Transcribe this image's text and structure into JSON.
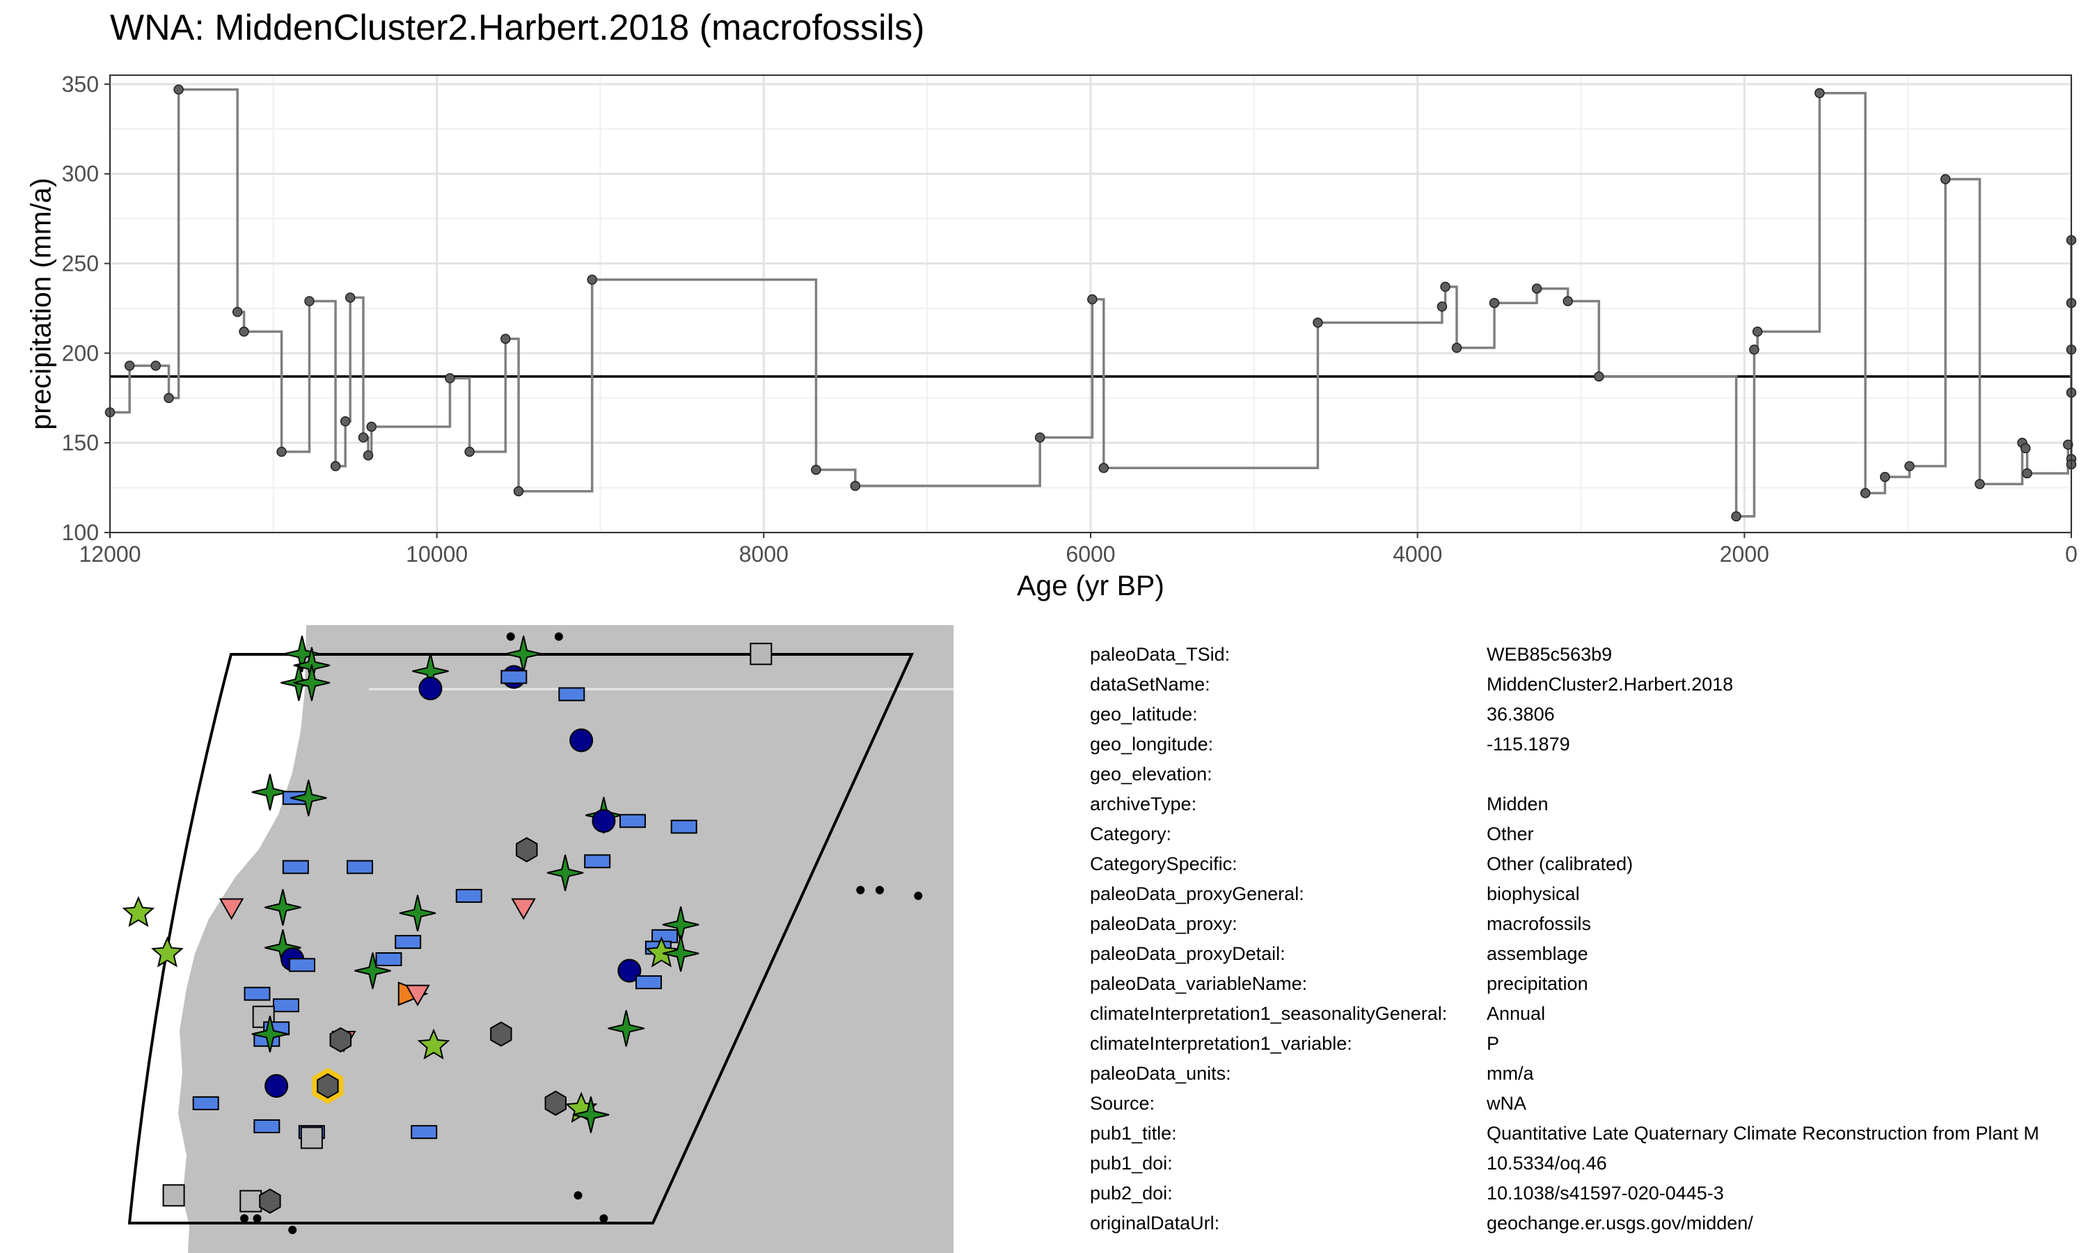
{
  "title": "WNA: MiddenCluster2.Harbert.2018 (macrofossils)",
  "chart_data": {
    "type": "line",
    "step": true,
    "xlabel": "Age (yr BP)",
    "ylabel": "precipitation (mm/a)",
    "xlim": [
      12000,
      0
    ],
    "ylim": [
      100,
      355
    ],
    "x_ticks": [
      12000,
      10000,
      8000,
      6000,
      4000,
      2000,
      0
    ],
    "y_ticks": [
      100,
      150,
      200,
      250,
      300,
      350
    ],
    "grid": true,
    "mean_line": 187,
    "series": [
      {
        "x": [
          12000,
          11880,
          11720,
          11640,
          11580,
          11220,
          11180,
          10950,
          10780,
          10620,
          10560,
          10530,
          10450,
          10420,
          10400,
          9920,
          9800,
          9580,
          9500,
          9050,
          7680,
          7440,
          6310,
          5990,
          5920,
          4610,
          3850,
          3830,
          3760,
          3530,
          3270,
          3080,
          2890,
          2050,
          1940,
          1920,
          1540,
          1260,
          1140,
          990,
          770,
          560,
          300,
          280,
          270,
          20,
          0,
          0,
          0,
          0,
          0,
          0
        ],
        "y": [
          167,
          193,
          193,
          175,
          347,
          223,
          212,
          145,
          229,
          137,
          162,
          231,
          153,
          143,
          159,
          186,
          145,
          208,
          123,
          241,
          135,
          126,
          153,
          230,
          136,
          217,
          226,
          237,
          203,
          228,
          236,
          229,
          187,
          109,
          202,
          212,
          345,
          122,
          131,
          137,
          297,
          127,
          150,
          147,
          133,
          149,
          263,
          228,
          202,
          178,
          141,
          138
        ]
      }
    ]
  },
  "map": {
    "colors": {
      "land": "#c0c0c0",
      "dark_green": "#228b22",
      "light_green": "#7fbf2a",
      "blue": "#4f7fe3",
      "navy": "#00008b",
      "gray_hex": "#5a5a5a",
      "light_gray_square": "#b8b8b8",
      "salmon": "#f08080",
      "orange": "#f07f1f",
      "highlight": "#f5c518"
    },
    "markers": [
      {
        "shape": "star4",
        "color": "dark_green",
        "lon": -124.2,
        "lat": 48.3
      },
      {
        "shape": "star4",
        "color": "dark_green",
        "lon": -123.9,
        "lat": 48.1
      },
      {
        "shape": "star4",
        "color": "dark_green",
        "lon": -124.3,
        "lat": 47.8
      },
      {
        "shape": "star4",
        "color": "dark_green",
        "lon": -123.9,
        "lat": 47.8
      },
      {
        "shape": "star4",
        "color": "dark_green",
        "lon": -120.2,
        "lat": 48.0
      },
      {
        "shape": "star4",
        "color": "dark_green",
        "lon": -117.3,
        "lat": 48.3
      },
      {
        "shape": "circle",
        "color": "navy",
        "lon": -120.2,
        "lat": 47.7
      },
      {
        "shape": "circle",
        "color": "navy",
        "lon": -117.6,
        "lat": 47.9
      },
      {
        "shape": "rect",
        "color": "blue",
        "lon": -117.6,
        "lat": 47.9
      },
      {
        "shape": "rect",
        "color": "blue",
        "lon": -115.8,
        "lat": 47.6
      },
      {
        "shape": "circle",
        "color": "navy",
        "lon": -115.5,
        "lat": 46.8
      },
      {
        "shape": "star4",
        "color": "dark_green",
        "lon": -125.2,
        "lat": 45.9
      },
      {
        "shape": "rect",
        "color": "blue",
        "lon": -124.4,
        "lat": 45.8
      },
      {
        "shape": "star4",
        "color": "dark_green",
        "lon": -124.0,
        "lat": 45.8
      },
      {
        "shape": "star4",
        "color": "dark_green",
        "lon": -114.8,
        "lat": 45.5
      },
      {
        "shape": "circle",
        "color": "navy",
        "lon": -114.8,
        "lat": 45.4
      },
      {
        "shape": "rect",
        "color": "blue",
        "lon": -113.9,
        "lat": 45.4
      },
      {
        "shape": "rect",
        "color": "blue",
        "lon": -112.3,
        "lat": 45.3
      },
      {
        "shape": "hex",
        "color": "gray_hex",
        "lon": -117.2,
        "lat": 44.9
      },
      {
        "shape": "rect",
        "color": "blue",
        "lon": -124.4,
        "lat": 44.6
      },
      {
        "shape": "rect",
        "color": "blue",
        "lon": -122.4,
        "lat": 44.6
      },
      {
        "shape": "rect",
        "color": "blue",
        "lon": -115.0,
        "lat": 44.7
      },
      {
        "shape": "star4",
        "color": "dark_green",
        "lon": -116.0,
        "lat": 44.5
      },
      {
        "shape": "rect",
        "color": "blue",
        "lon": -119.0,
        "lat": 44.1
      },
      {
        "shape": "star5",
        "color": "light_green",
        "lon": -129.3,
        "lat": 43.8
      },
      {
        "shape": "tri_down",
        "color": "salmon",
        "lon": -126.4,
        "lat": 43.9
      },
      {
        "shape": "star4",
        "color": "dark_green",
        "lon": -124.8,
        "lat": 43.9
      },
      {
        "shape": "star4",
        "color": "dark_green",
        "lon": -120.6,
        "lat": 43.8
      },
      {
        "shape": "tri_down",
        "color": "salmon",
        "lon": -117.3,
        "lat": 43.9
      },
      {
        "shape": "star4",
        "color": "dark_green",
        "lon": -112.4,
        "lat": 43.6
      },
      {
        "shape": "star4",
        "color": "dark_green",
        "lon": -124.8,
        "lat": 43.2
      },
      {
        "shape": "rect",
        "color": "blue",
        "lon": -120.9,
        "lat": 43.3
      },
      {
        "shape": "rect",
        "color": "blue",
        "lon": -112.9,
        "lat": 43.4
      },
      {
        "shape": "rect",
        "color": "blue",
        "lon": -113.1,
        "lat": 43.2
      },
      {
        "shape": "star5",
        "color": "light_green",
        "lon": -113.0,
        "lat": 43.1
      },
      {
        "shape": "star4",
        "color": "dark_green",
        "lon": -112.4,
        "lat": 43.1
      },
      {
        "shape": "star5",
        "color": "light_green",
        "lon": -128.4,
        "lat": 43.1
      },
      {
        "shape": "circle",
        "color": "navy",
        "lon": -124.5,
        "lat": 43.0
      },
      {
        "shape": "rect",
        "color": "blue",
        "lon": -124.2,
        "lat": 42.9
      },
      {
        "shape": "rect",
        "color": "blue",
        "lon": -121.5,
        "lat": 43.0
      },
      {
        "shape": "star4",
        "color": "dark_green",
        "lon": -122.0,
        "lat": 42.8
      },
      {
        "shape": "circle",
        "color": "navy",
        "lon": -114.0,
        "lat": 42.8
      },
      {
        "shape": "rect",
        "color": "blue",
        "lon": -113.4,
        "lat": 42.6
      },
      {
        "shape": "tri_right",
        "color": "orange",
        "lon": -120.8,
        "lat": 42.4
      },
      {
        "shape": "tri_down",
        "color": "salmon",
        "lon": -120.6,
        "lat": 42.4
      },
      {
        "shape": "rect",
        "color": "blue",
        "lon": -125.6,
        "lat": 42.4
      },
      {
        "shape": "rect",
        "color": "blue",
        "lon": -124.7,
        "lat": 42.2
      },
      {
        "shape": "square",
        "color": "light_gray_square",
        "lon": -125.4,
        "lat": 42.0
      },
      {
        "shape": "rect",
        "color": "blue",
        "lon": -125.0,
        "lat": 41.8
      },
      {
        "shape": "rect",
        "color": "blue",
        "lon": -125.3,
        "lat": 41.6
      },
      {
        "shape": "star4",
        "color": "dark_green",
        "lon": -125.2,
        "lat": 41.7
      },
      {
        "shape": "tri_down",
        "color": "salmon",
        "lon": -122.9,
        "lat": 41.6
      },
      {
        "shape": "hex",
        "color": "gray_hex",
        "lon": -123.0,
        "lat": 41.6
      },
      {
        "shape": "star5",
        "color": "light_green",
        "lon": -120.1,
        "lat": 41.5
      },
      {
        "shape": "hex",
        "color": "gray_hex",
        "lon": -118.0,
        "lat": 41.7
      },
      {
        "shape": "star4",
        "color": "dark_green",
        "lon": -114.1,
        "lat": 41.8
      },
      {
        "shape": "circle",
        "color": "navy",
        "lon": -125.0,
        "lat": 40.8
      },
      {
        "shape": "rect",
        "color": "blue",
        "lon": -127.2,
        "lat": 40.5
      },
      {
        "shape": "hex",
        "color": "gray_hex",
        "lon": -123.4,
        "lat": 40.8,
        "highlight": true
      },
      {
        "shape": "hex",
        "color": "gray_hex",
        "lon": -116.3,
        "lat": 40.5
      },
      {
        "shape": "star5",
        "color": "light_green",
        "lon": -115.5,
        "lat": 40.4
      },
      {
        "shape": "star4",
        "color": "dark_green",
        "lon": -115.2,
        "lat": 40.3
      },
      {
        "shape": "rect",
        "color": "blue",
        "lon": -125.3,
        "lat": 40.1
      },
      {
        "shape": "rect",
        "color": "blue",
        "lon": -123.9,
        "lat": 40.0
      },
      {
        "shape": "square",
        "color": "light_gray_square",
        "lon": -123.9,
        "lat": 39.9
      },
      {
        "shape": "rect",
        "color": "blue",
        "lon": -120.4,
        "lat": 40.0
      },
      {
        "shape": "square",
        "color": "light_gray_square",
        "lon": -128.2,
        "lat": 38.9
      },
      {
        "shape": "square",
        "color": "light_gray_square",
        "lon": -125.8,
        "lat": 38.8
      },
      {
        "shape": "hex",
        "color": "gray_hex",
        "lon": -125.2,
        "lat": 38.8
      },
      {
        "shape": "square",
        "color": "light_gray_square",
        "lon": -109.9,
        "lat": 48.3
      }
    ],
    "dots": [
      {
        "lon": -117.7,
        "lat": 48.6
      },
      {
        "lon": -116.2,
        "lat": 48.6
      },
      {
        "lon": -106.8,
        "lat": 44.2
      },
      {
        "lon": -106.2,
        "lat": 44.2
      },
      {
        "lon": -105.0,
        "lat": 44.1
      },
      {
        "lon": -126.0,
        "lat": 38.5
      },
      {
        "lon": -125.6,
        "lat": 38.5
      },
      {
        "lon": -124.5,
        "lat": 38.3
      },
      {
        "lon": -115.6,
        "lat": 38.9
      },
      {
        "lon": -114.8,
        "lat": 38.5
      }
    ]
  },
  "metadata": [
    {
      "key": "paleoData_TSid:",
      "value": "WEB85c563b9"
    },
    {
      "key": "dataSetName:",
      "value": "MiddenCluster2.Harbert.2018"
    },
    {
      "key": "geo_latitude:",
      "value": "36.3806"
    },
    {
      "key": "geo_longitude:",
      "value": "-115.1879"
    },
    {
      "key": "geo_elevation:",
      "value": ""
    },
    {
      "key": "archiveType:",
      "value": "Midden"
    },
    {
      "key": "Category:",
      "value": "Other"
    },
    {
      "key": "CategorySpecific:",
      "value": "Other (calibrated)"
    },
    {
      "key": "paleoData_proxyGeneral:",
      "value": "biophysical"
    },
    {
      "key": "paleoData_proxy:",
      "value": "macrofossils"
    },
    {
      "key": "paleoData_proxyDetail:",
      "value": "assemblage"
    },
    {
      "key": "paleoData_variableName:",
      "value": "precipitation"
    },
    {
      "key": "climateInterpretation1_seasonalityGeneral:",
      "value": "Annual"
    },
    {
      "key": "climateInterpretation1_variable:",
      "value": "P"
    },
    {
      "key": "paleoData_units:",
      "value": "mm/a"
    },
    {
      "key": "Source:",
      "value": "wNA"
    },
    {
      "key": "pub1_title:",
      "value": "Quantitative Late Quaternary Climate Reconstruction from Plant M"
    },
    {
      "key": "pub1_doi:",
      "value": "10.5334/oq.46"
    },
    {
      "key": "pub2_doi:",
      "value": "10.1038/s41597-020-0445-3"
    },
    {
      "key": "originalDataUrl:",
      "value": "geochange.er.usgs.gov/midden/"
    }
  ]
}
